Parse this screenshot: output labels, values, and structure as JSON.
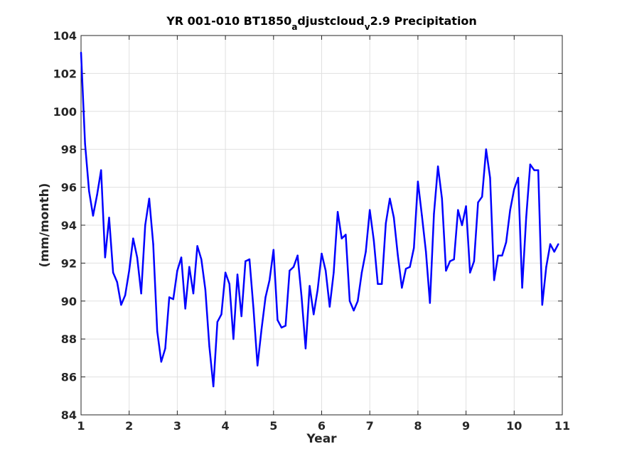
{
  "chart_data": {
    "type": "line",
    "title": {
      "part1": "YR 001-010 BT1850",
      "sub1": "a",
      "part2": "djustcloud",
      "sub2": "v",
      "part3": "2.9 Precipitation"
    },
    "xlabel": "Year",
    "ylabel": "(mm/month)",
    "xlim": [
      1,
      11
    ],
    "ylim": [
      84,
      104
    ],
    "xticks": [
      "1",
      "2",
      "3",
      "4",
      "5",
      "6",
      "7",
      "8",
      "9",
      "10",
      "11"
    ],
    "yticks": [
      "84",
      "86",
      "88",
      "90",
      "92",
      "94",
      "96",
      "98",
      "100",
      "102",
      "104"
    ],
    "grid": true,
    "series": [
      {
        "color": "#0000ff",
        "x_start": 1,
        "x_step": 0.0833333,
        "values": [
          103.1,
          98.3,
          95.8,
          94.5,
          95.6,
          96.9,
          92.3,
          94.4,
          91.5,
          91.0,
          89.8,
          90.3,
          91.6,
          93.3,
          92.3,
          90.4,
          94.0,
          95.4,
          93.0,
          88.4,
          86.8,
          87.5,
          90.2,
          90.1,
          91.6,
          92.3,
          89.6,
          91.8,
          90.4,
          92.9,
          92.2,
          90.6,
          87.6,
          85.5,
          88.9,
          89.3,
          91.5,
          90.9,
          88.0,
          91.4,
          89.2,
          92.1,
          92.2,
          89.6,
          86.6,
          88.5,
          90.2,
          91.1,
          92.7,
          89.0,
          88.6,
          88.7,
          91.6,
          91.8,
          92.4,
          90.2,
          87.5,
          90.8,
          89.3,
          90.6,
          92.5,
          91.6,
          89.7,
          91.5,
          94.7,
          93.3,
          93.5,
          90.0,
          89.5,
          90.0,
          91.5,
          92.6,
          94.8,
          93.2,
          90.9,
          90.9,
          94.1,
          95.4,
          94.4,
          92.4,
          90.7,
          91.7,
          91.8,
          92.8,
          96.3,
          94.5,
          92.6,
          89.9,
          94.6,
          97.1,
          95.4,
          91.6,
          92.1,
          92.2,
          94.8,
          94.0,
          95.0,
          91.5,
          92.1,
          95.2,
          95.5,
          98.0,
          96.5,
          91.1,
          92.4,
          92.4,
          93.1,
          94.8,
          95.9,
          96.5,
          90.7,
          94.4,
          97.2,
          96.9,
          96.9,
          89.8,
          91.8,
          93.0,
          92.6,
          93.0
        ]
      }
    ]
  }
}
